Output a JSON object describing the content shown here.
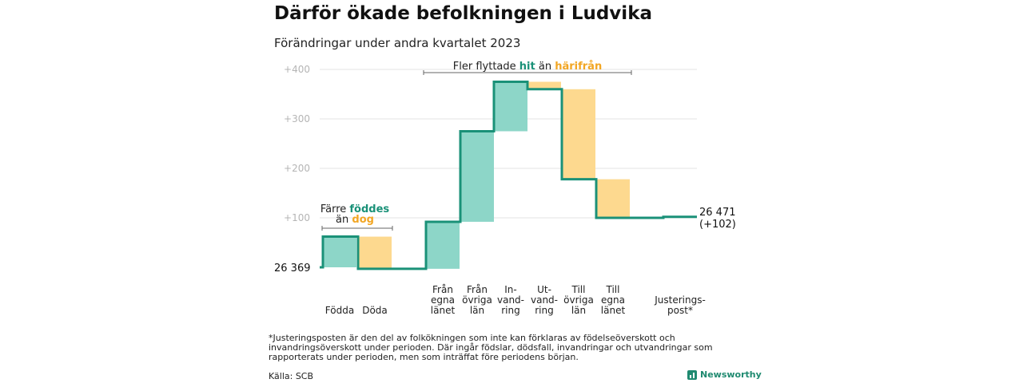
{
  "header": {
    "title": "Därför ökade befolkningen i Ludvika",
    "subtitle": "Förändringar under andra kvartalet 2023"
  },
  "colors": {
    "increase_fill": "#8dd6c8",
    "decrease_fill": "#fdd98f",
    "step_line": "#1a9178",
    "highlight_teal": "#1a9178",
    "highlight_orange": "#f2a623",
    "grid": "#e3e3e3",
    "tick_text": "#b5b5b5"
  },
  "annotations": {
    "births": {
      "prefix": "Färre",
      "highlight1": "föddes",
      "line2_prefix": "än",
      "highlight2": "dog"
    },
    "migration": {
      "prefix": "Fler flyttade",
      "highlight1": "hit",
      "middle": "än",
      "highlight2": "härifrån"
    }
  },
  "chart_data": {
    "type": "waterfall",
    "start_label": "26  369",
    "end_label": "26 471",
    "end_change": "(+102)",
    "y_ticks": [
      "+100",
      "+200",
      "+300",
      "+400"
    ],
    "ylim": [
      0,
      420
    ],
    "grid": true,
    "steps": [
      {
        "label_lines": [
          "Födda"
        ],
        "from": 0,
        "to": 62,
        "kind": "increase"
      },
      {
        "label_lines": [
          "Döda"
        ],
        "from": 62,
        "to": -3,
        "kind": "decrease"
      },
      {
        "label_lines": [
          "Från",
          "egna",
          "länet"
        ],
        "from": -3,
        "to": 92,
        "kind": "increase"
      },
      {
        "label_lines": [
          "Från",
          "övriga",
          "län"
        ],
        "from": 92,
        "to": 275,
        "kind": "increase"
      },
      {
        "label_lines": [
          "In-",
          "vand-",
          "ring"
        ],
        "from": 275,
        "to": 375,
        "kind": "increase"
      },
      {
        "label_lines": [
          "Ut-",
          "vand-",
          "ring"
        ],
        "from": 375,
        "to": 360,
        "kind": "decrease"
      },
      {
        "label_lines": [
          "Till",
          "övriga",
          "län"
        ],
        "from": 360,
        "to": 178,
        "kind": "decrease"
      },
      {
        "label_lines": [
          "Till",
          "egna",
          "länet"
        ],
        "from": 178,
        "to": 100,
        "kind": "decrease"
      },
      {
        "label_lines": [
          "Justerings-",
          "post*"
        ],
        "from": 100,
        "to": 102,
        "kind": "increase"
      }
    ]
  },
  "footnote": "*Justeringsposten är den del av folkökningen som inte kan förklaras av födelseöverskott och invandringsöverskott under perioden. Där ingår födslar, dödsfall, invandringar och utvandringar som rapporterats under perioden, men som inträffat före periodens början.",
  "source": "Källa: SCB",
  "brand": "Newsworthy"
}
